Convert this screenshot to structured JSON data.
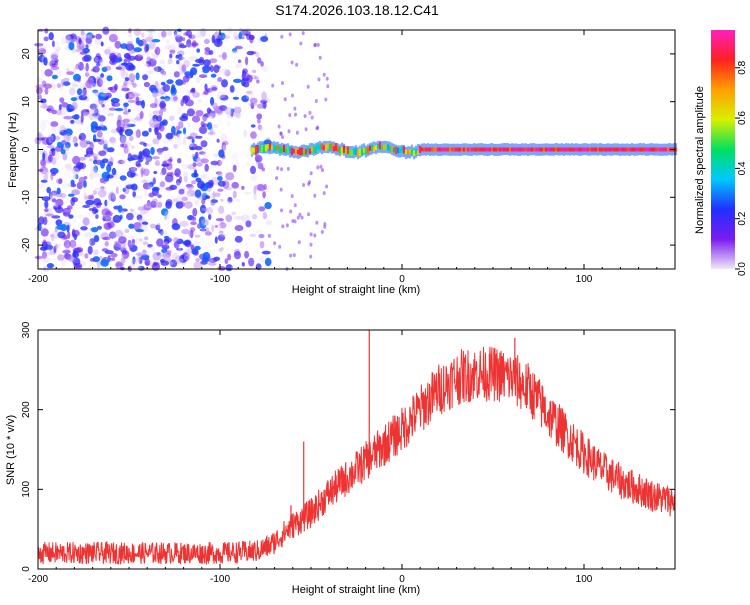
{
  "title": "S174.2026.103.18.12.C41",
  "chart_data": [
    {
      "type": "heatmap",
      "name": "spectrogram",
      "xlabel": "Height of straight line (km)",
      "ylabel": "Frequency (Hz)",
      "xlim": [
        -200,
        150
      ],
      "ylim": [
        -25,
        25
      ],
      "xticks": [
        -200,
        -100,
        0,
        100
      ],
      "yticks": [
        -20,
        -10,
        0,
        10,
        20
      ],
      "noise_region_x": [
        -200,
        -73
      ],
      "noise_level_range": [
        0.0,
        0.3
      ],
      "trace_start_x": -83,
      "trace_frequency_hz": 0,
      "trace_amplitude_range": [
        0.3,
        0.9
      ],
      "colorbar": {
        "label": "Normalized spectral amplitude",
        "range": [
          0.0,
          0.95
        ],
        "ticks": [
          0.0,
          0.2,
          0.4,
          0.6,
          0.8
        ],
        "tick_labels": [
          "0.0",
          "0.2",
          "0.4",
          "0.6",
          "0.8"
        ],
        "colors": [
          "#f0e8f8",
          "#7a1cf0",
          "#2030ff",
          "#00c8ff",
          "#00e060",
          "#d8f000",
          "#ffa000",
          "#ff2020",
          "#ff20c0"
        ]
      }
    },
    {
      "type": "line",
      "name": "snr",
      "xlabel": "Height of straight line (km)",
      "ylabel": "SNR (10 * v/v)",
      "xlim": [
        -200,
        150
      ],
      "ylim": [
        0,
        300
      ],
      "xticks": [
        -200,
        -100,
        0,
        100
      ],
      "yticks": [
        0,
        100,
        200,
        300
      ],
      "line_color": "#ee3333",
      "envelope": {
        "x": [
          -200,
          -150,
          -100,
          -80,
          -72,
          -60,
          -50,
          -40,
          -30,
          -20,
          -10,
          0,
          10,
          20,
          30,
          40,
          50,
          60,
          70,
          80,
          90,
          100,
          110,
          120,
          130,
          140,
          150
        ],
        "y": [
          20,
          20,
          20,
          22,
          30,
          55,
          70,
          95,
          115,
          135,
          155,
          175,
          200,
          225,
          240,
          245,
          245,
          240,
          225,
          195,
          170,
          145,
          125,
          110,
          100,
          90,
          85
        ]
      },
      "noise_amplitude": [
        12,
        35
      ],
      "spikes": [
        {
          "x": -18,
          "y": 300
        },
        {
          "x": -54,
          "y": 160
        },
        {
          "x": -61,
          "y": 80
        },
        {
          "x": 48,
          "y": 270
        },
        {
          "x": 62,
          "y": 290
        }
      ]
    }
  ]
}
